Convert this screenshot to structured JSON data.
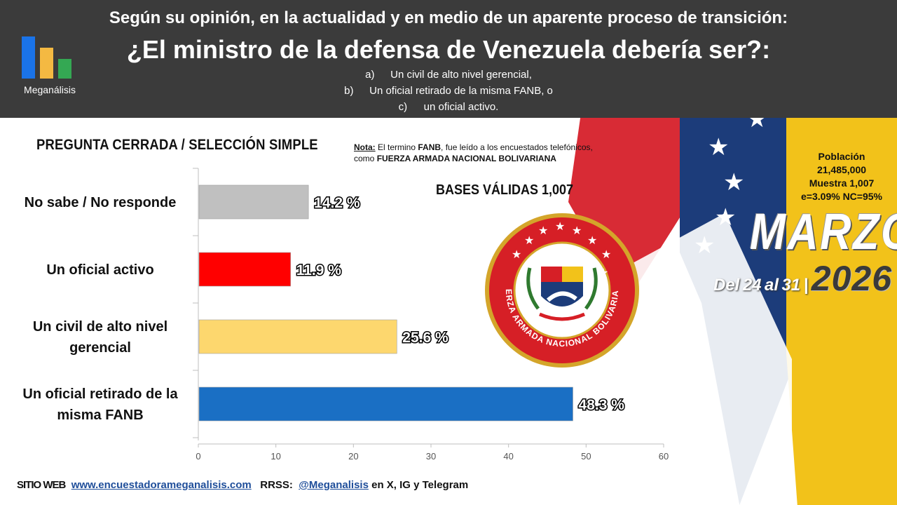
{
  "header": {
    "line1": "Según su opinión, en la actualidad y en medio de un aparente proceso de transición:",
    "line2": "¿El ministro de la defensa de Venezuela debería ser?:",
    "options": [
      {
        "letter": "a)",
        "text": "Un civil de alto nivel gerencial,"
      },
      {
        "letter": "b)",
        "text": "Un oficial retirado de la misma FANB, o"
      },
      {
        "letter": "c)",
        "text": "un oficial activo."
      }
    ],
    "logo_text": "Meganálisis"
  },
  "subtitle": "PREGUNTA  CERRADA / SELECCIÓN SIMPLE",
  "note": {
    "label": "Nota:",
    "text1": " El termino ",
    "bold1": "FANB",
    "text2": ", fue leído a los encuestados telefónicos,",
    "text3": "como ",
    "bold2": "FUERZA ARMADA NACIONAL BOLIVARIANA"
  },
  "bases": "BASES VÁLIDAS 1,007",
  "seal_text": "FUERZA ARMADA NACIONAL BOLIVARIANA",
  "population": {
    "line1": "Población",
    "line2": "21,485,000",
    "line3": "Muestra 1,007",
    "line4": "e=3.09%  NC=95%"
  },
  "period": {
    "month": "MARZO",
    "del": "Del",
    "d1": "24",
    "al": "al",
    "d2": "31",
    "sep": "|",
    "year": "2026"
  },
  "colors": {
    "gray": "#c0c0c0",
    "red": "#ff0000",
    "yellow": "#fdd76e",
    "blue": "#1a6fc4"
  },
  "chart_data": {
    "type": "bar",
    "orientation": "horizontal",
    "categories": [
      "No sabe / No responde",
      "Un oficial activo",
      "Un civil de alto nivel gerencial",
      "Un oficial retirado de la misma FANB"
    ],
    "category_lines": [
      [
        "No sabe / No responde"
      ],
      [
        "Un oficial activo"
      ],
      [
        "Un civil de alto nivel",
        "gerencial"
      ],
      [
        "Un oficial retirado de la",
        "misma FANB"
      ]
    ],
    "values": [
      14.2,
      11.9,
      25.6,
      48.3
    ],
    "value_labels": [
      "14.2 %",
      "11.9 %",
      "25.6 %",
      "48.3 %"
    ],
    "bar_colors": [
      "#c0c0c0",
      "#ff0000",
      "#fdd76e",
      "#1a6fc4"
    ],
    "xlim": [
      0,
      60
    ],
    "xticks": [
      0,
      10,
      20,
      30,
      40,
      50,
      60
    ],
    "grid": false
  },
  "footer": {
    "site_label": "SITIO WEB",
    "site_url": "www.encuestadorameganalisis.com",
    "rrss_label": "RRSS:",
    "handle": "@Meganalisis",
    "networks": " en X, IG y Telegram"
  }
}
